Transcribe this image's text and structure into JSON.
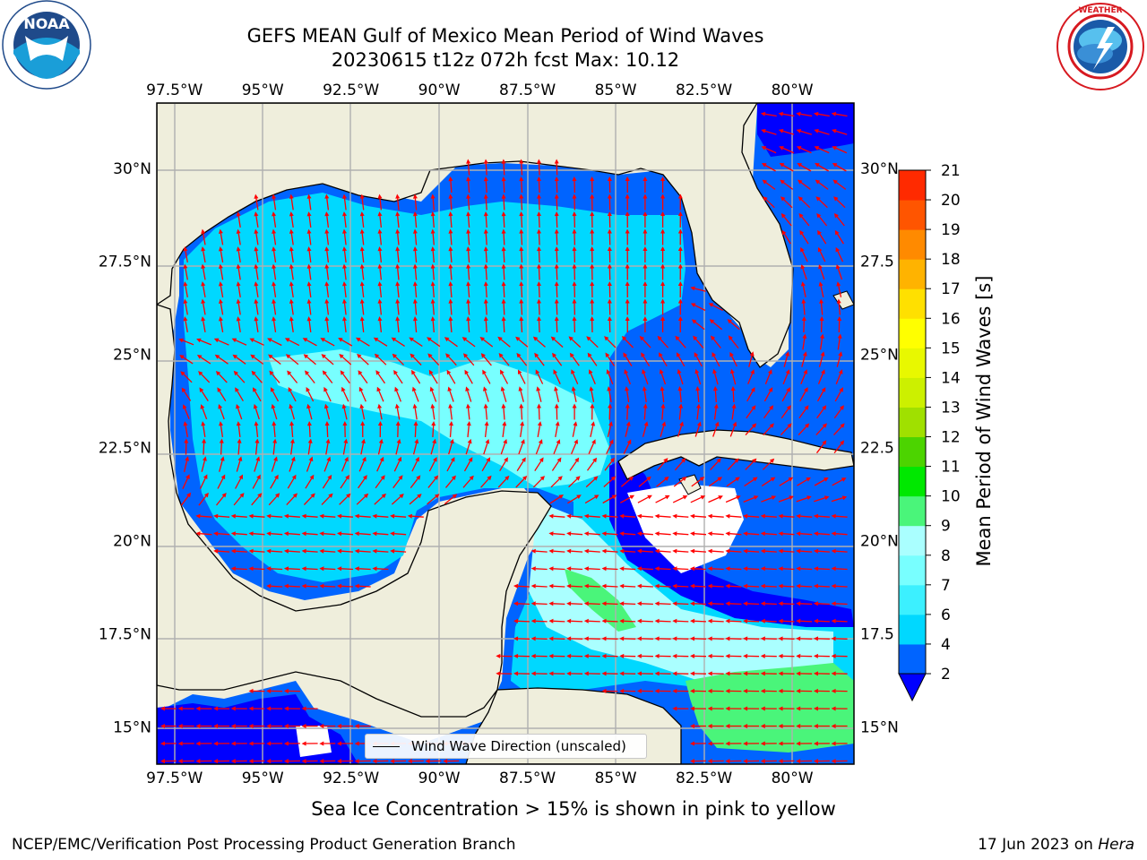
{
  "header": {
    "title_line1": "GEFS MEAN Gulf of Mexico Mean Period of Wind Waves",
    "title_line2": "20230615 t12z 072h fcst   Max: 10.12"
  },
  "logos": {
    "left": {
      "name": "NOAA",
      "ring_text": "NATIONAL OCEANIC AND ATMOSPHERIC ADMINISTRATION · U.S. DEPARTMENT OF COMMERCE"
    },
    "right": {
      "name": "National Weather Service",
      "ring_text": "NATIONAL WEATHER SERVICE"
    }
  },
  "map": {
    "lon_ticks_top": [
      "97.5°W",
      "95°W",
      "92.5°W",
      "90°W",
      "87.5°W",
      "85°W",
      "82.5°W",
      "80°W"
    ],
    "lon_ticks_bottom": [
      "97.5°W",
      "95°W",
      "92.5°W",
      "90°W",
      "87.5°W",
      "85°W",
      "82.5°W",
      "80°W"
    ],
    "lat_ticks_left": [
      "30°N",
      "27.5°N",
      "25°N",
      "22.5°N",
      "20°N",
      "17.5°N",
      "15°N"
    ],
    "lat_ticks_right": [
      "30°N",
      "27.5",
      "25°N",
      "22.5",
      "20°N",
      "17.5",
      "15°N"
    ],
    "lon_values": [
      -97.5,
      -95,
      -92.5,
      -90,
      -87.5,
      -85,
      -82.5,
      -80
    ],
    "lat_values": [
      30,
      27.5,
      25,
      22.5,
      20,
      17.5,
      15
    ],
    "lon_range": [
      -98,
      -78.25
    ],
    "lat_range": [
      14,
      31.75
    ],
    "legend_text": "Wind Wave Direction (unscaled)",
    "colors": {
      "land": "#efeedc",
      "grid": "#b0b0b0",
      "arrows": "#ff0000",
      "coast": "#000000"
    }
  },
  "colorbar": {
    "label": "Mean Period of Wind Waves [s]",
    "ticks": [
      "2",
      "4",
      "6",
      "7",
      "8",
      "9",
      "10",
      "11",
      "12",
      "13",
      "14",
      "15",
      "16",
      "17",
      "18",
      "19",
      "20",
      "21"
    ],
    "colors": [
      "#0064ff",
      "#00d8ff",
      "#3cf0ff",
      "#78ffff",
      "#aaffff",
      "#4af57a",
      "#00e800",
      "#4cd400",
      "#a0e000",
      "#ccf000",
      "#e8f800",
      "#ffff00",
      "#ffe000",
      "#ffb300",
      "#ff8a00",
      "#ff5500",
      "#ff2a00"
    ],
    "extend_color": "#0000ff"
  },
  "footer": {
    "caption": "Sea Ice Concentration > 15% is shown in pink to yellow",
    "left": "NCEP/EMC/Verification Post Processing Product Generation Branch",
    "right_prefix": "17 Jun 2023 on ",
    "right_host": "Hera"
  }
}
